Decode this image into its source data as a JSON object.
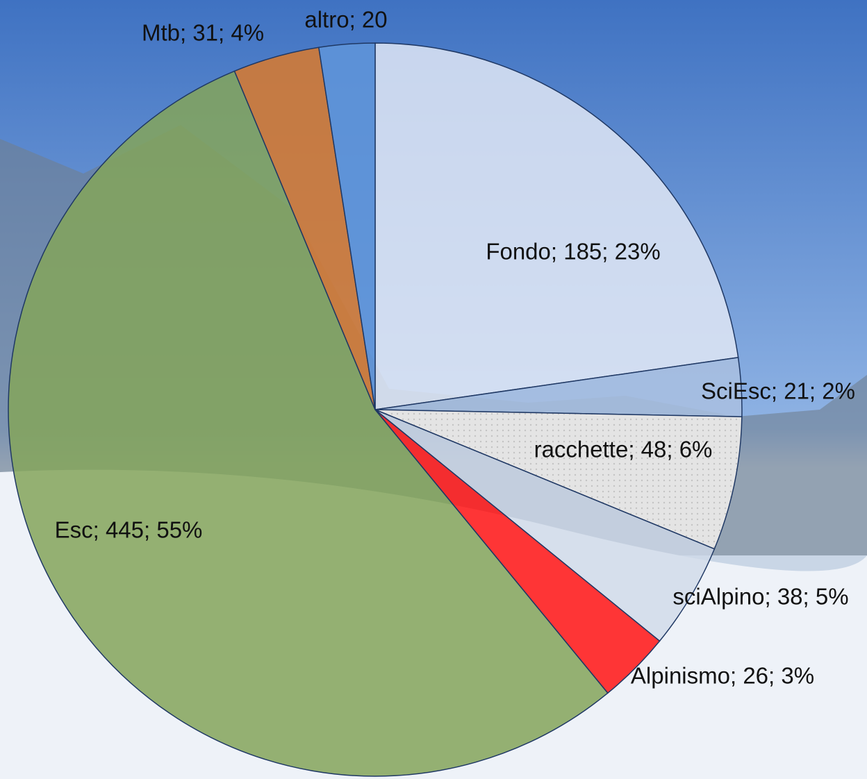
{
  "chart_data": {
    "type": "pie",
    "values": [
      185,
      21,
      48,
      38,
      26,
      445,
      31,
      20
    ],
    "value_labels": [
      "Fondo; 185; 23%",
      "SciEsc; 21; 2%",
      "racchette; 48; 6%",
      "sciAlpino; 38; 5%",
      "Alpinismo; 26; 3%",
      "Esc; 445; 55%",
      "Mtb; 31; 4%",
      "altro; 20"
    ],
    "colors": [
      "#dfe6f4",
      "#a9bfe0",
      "#e2e2e2",
      "#cfd9e8",
      "#ff2020",
      "#84a55a",
      "#d27a35",
      "#5e93d8"
    ]
  }
}
